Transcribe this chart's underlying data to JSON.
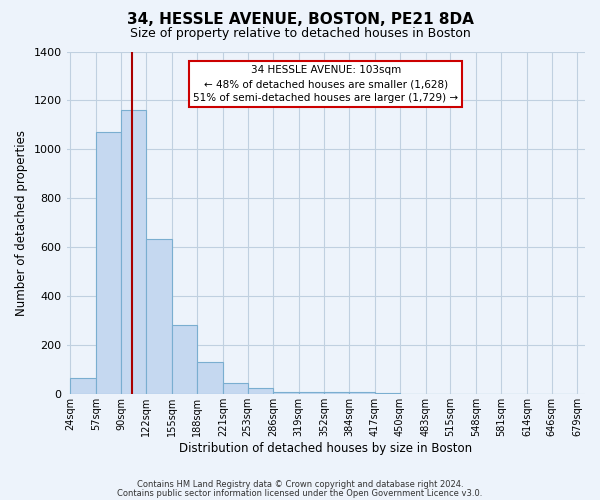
{
  "title": "34, HESSLE AVENUE, BOSTON, PE21 8DA",
  "subtitle": "Size of property relative to detached houses in Boston",
  "xlabel": "Distribution of detached houses by size in Boston",
  "ylabel": "Number of detached properties",
  "footer_line1": "Contains HM Land Registry data © Crown copyright and database right 2024.",
  "footer_line2": "Contains public sector information licensed under the Open Government Licence v3.0.",
  "bin_labels": [
    "24sqm",
    "57sqm",
    "90sqm",
    "122sqm",
    "155sqm",
    "188sqm",
    "221sqm",
    "253sqm",
    "286sqm",
    "319sqm",
    "352sqm",
    "384sqm",
    "417sqm",
    "450sqm",
    "483sqm",
    "515sqm",
    "548sqm",
    "581sqm",
    "614sqm",
    "646sqm",
    "679sqm"
  ],
  "bar_values": [
    65,
    1070,
    1160,
    635,
    285,
    130,
    48,
    25,
    10,
    10,
    10,
    10,
    5,
    0,
    0,
    0,
    0,
    0,
    0,
    0
  ],
  "bin_edges": [
    24,
    57,
    90,
    122,
    155,
    188,
    221,
    253,
    286,
    319,
    352,
    384,
    417,
    450,
    483,
    515,
    548,
    581,
    614,
    646,
    679
  ],
  "bar_color": "#c5d8f0",
  "bar_edge_color": "#7aaed0",
  "vline_x": 103,
  "vline_color": "#aa0000",
  "ylim": [
    0,
    1400
  ],
  "yticks": [
    0,
    200,
    400,
    600,
    800,
    1000,
    1200,
    1400
  ],
  "annotation_title": "34 HESSLE AVENUE: 103sqm",
  "annotation_line1": "← 48% of detached houses are smaller (1,628)",
  "annotation_line2": "51% of semi-detached houses are larger (1,729) →",
  "annotation_box_color": "#ffffff",
  "annotation_box_edge": "#cc0000",
  "grid_color": "#c0d0e0",
  "bg_color": "#edf3fb",
  "title_fontsize": 11,
  "subtitle_fontsize": 9
}
